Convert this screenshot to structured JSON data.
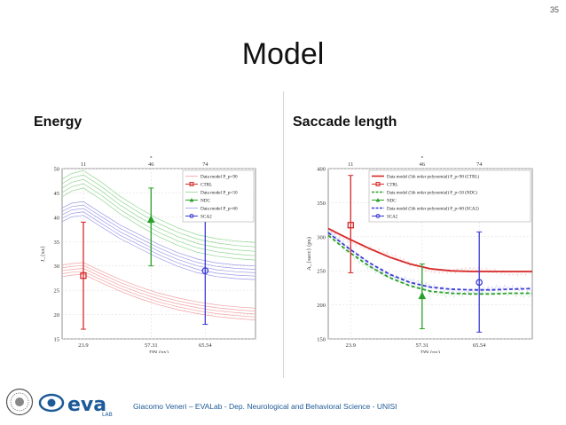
{
  "slide": {
    "page_number": "35",
    "title": "Model",
    "left_heading": "Energy",
    "right_heading": "Saccade length",
    "footer": "Giacomo  Veneri – EVALab  - Dep. Neurological  and Behavioral Science - UNISI",
    "logo_text": "eva",
    "logo_sub": "LAB"
  },
  "colors": {
    "ctrl": "#d62828",
    "ndc": "#2aa02a",
    "sca2": "#3b3bd6",
    "ctrl_light": "#f2a0a0",
    "ndc_light": "#8fd68f",
    "sca2_light": "#9c9ce8"
  },
  "chart_data": [
    {
      "type": "line",
      "title": "Energy",
      "xlabel": "DN (px)",
      "ylabel": "J_{xx}",
      "top_axis_label": "s",
      "xlim": [
        0,
        100
      ],
      "ylim": [
        15,
        50
      ],
      "yticks": [
        15,
        20,
        25,
        30,
        35,
        40,
        45,
        50
      ],
      "top_ticks": [
        {
          "pos": 11,
          "label": "11"
        },
        {
          "pos": 46,
          "label": "46"
        },
        {
          "pos": 74,
          "label": "74"
        }
      ],
      "x_ticks": [
        {
          "pos": 11,
          "label": "23.9"
        },
        {
          "pos": 46,
          "label": "57.31"
        },
        {
          "pos": 74,
          "label": "65.54"
        }
      ],
      "legend": [
        {
          "label": "Data model P_p=90",
          "color_key": "ctrl_light",
          "style": "thin"
        },
        {
          "label": "CTRL",
          "color_key": "ctrl",
          "style": "square"
        },
        {
          "label": "Data model P_p=50",
          "color_key": "ndc_light",
          "style": "thin"
        },
        {
          "label": "NDC",
          "color_key": "ndc",
          "style": "triangle"
        },
        {
          "label": "Data model P_p=60",
          "color_key": "sca2_light",
          "style": "thin"
        },
        {
          "label": "SCA2",
          "color_key": "sca2",
          "style": "circle"
        }
      ],
      "curve_bundles": [
        {
          "name": "CTRL model",
          "color_key": "ctrl_light",
          "base": [
            [
              0,
              29
            ],
            [
              5,
              29.3
            ],
            [
              11,
              29.5
            ],
            [
              20,
              27.8
            ],
            [
              30,
              26
            ],
            [
              40,
              24.5
            ],
            [
              50,
              23.2
            ],
            [
              60,
              22.2
            ],
            [
              70,
              21.4
            ],
            [
              80,
              20.8
            ],
            [
              90,
              20.4
            ],
            [
              100,
              20.1
            ]
          ],
          "offsets": [
            -1.2,
            -0.6,
            0,
            0.6,
            1.2
          ]
        },
        {
          "name": "NDC model",
          "color_key": "ndc_light",
          "base": [
            [
              0,
              46
            ],
            [
              5,
              47.2
            ],
            [
              11,
              47.8
            ],
            [
              20,
              45.5
            ],
            [
              30,
              42.5
            ],
            [
              40,
              40
            ],
            [
              50,
              37.8
            ],
            [
              60,
              36
            ],
            [
              70,
              34.6
            ],
            [
              80,
              33.8
            ],
            [
              90,
              33.3
            ],
            [
              100,
              33
            ]
          ],
          "offsets": [
            -1.8,
            -0.9,
            0,
            0.9,
            1.8
          ]
        },
        {
          "name": "SCA2 model",
          "color_key": "sca2_light",
          "base": [
            [
              0,
              40.5
            ],
            [
              5,
              41.5
            ],
            [
              11,
              41.8
            ],
            [
              20,
              39.5
            ],
            [
              30,
              37
            ],
            [
              40,
              35
            ],
            [
              50,
              33
            ],
            [
              60,
              31.3
            ],
            [
              70,
              30
            ],
            [
              80,
              29.2
            ],
            [
              90,
              28.8
            ],
            [
              100,
              28.6
            ]
          ],
          "offsets": [
            -1.4,
            -0.7,
            0,
            0.7,
            1.4
          ]
        }
      ],
      "points": [
        {
          "name": "CTRL",
          "x": 11,
          "y": 28,
          "ylo": 17,
          "yhi": 39,
          "color_key": "ctrl",
          "marker": "square"
        },
        {
          "name": "NDC",
          "x": 46,
          "y": 39.5,
          "ylo": 30,
          "yhi": 46,
          "color_key": "ndc",
          "marker": "triangle"
        },
        {
          "name": "SCA2",
          "x": 74,
          "y": 29,
          "ylo": 18,
          "yhi": 40,
          "color_key": "sca2",
          "marker": "circle"
        }
      ]
    },
    {
      "type": "line",
      "title": "Saccade length",
      "xlabel": "DN (px)",
      "ylabel": "A_{sacc} (px)",
      "top_axis_label": "s",
      "xlim": [
        0,
        100
      ],
      "ylim": [
        150,
        400
      ],
      "yticks": [
        150,
        200,
        250,
        300,
        350,
        400
      ],
      "top_ticks": [
        {
          "pos": 11,
          "label": "11"
        },
        {
          "pos": 46,
          "label": "46"
        },
        {
          "pos": 74,
          "label": "74"
        }
      ],
      "x_ticks": [
        {
          "pos": 11,
          "label": "23.9"
        },
        {
          "pos": 46,
          "label": "57.31"
        },
        {
          "pos": 74,
          "label": "65.54"
        }
      ],
      "legend": [
        {
          "label": "Data model (5th order polynomial) P_p=90 (CTRL)",
          "color_key": "ctrl",
          "style": "solid"
        },
        {
          "label": "CTRL",
          "color_key": "ctrl",
          "style": "square"
        },
        {
          "label": "Data model (5th order polynomial) P_p=50 (NDC)",
          "color_key": "ndc",
          "style": "dashed"
        },
        {
          "label": "NDC",
          "color_key": "ndc",
          "style": "triangle"
        },
        {
          "label": "Data model (5th order polynomial) P_p=60 (SCA2)",
          "color_key": "sca2",
          "style": "dashed"
        },
        {
          "label": "SCA2",
          "color_key": "sca2",
          "style": "circle"
        }
      ],
      "fit_lines": [
        {
          "name": "CTRL fit",
          "color_key": "ctrl",
          "style": "solid",
          "points": [
            [
              0,
              312
            ],
            [
              10,
              297
            ],
            [
              20,
              283
            ],
            [
              30,
              270
            ],
            [
              40,
              260
            ],
            [
              50,
              253
            ],
            [
              60,
              250
            ],
            [
              70,
              249
            ],
            [
              80,
              249
            ],
            [
              90,
              249
            ],
            [
              100,
              249
            ]
          ]
        },
        {
          "name": "NDC fit",
          "color_key": "ndc",
          "style": "dashed",
          "points": [
            [
              0,
              302
            ],
            [
              10,
              278
            ],
            [
              20,
              257
            ],
            [
              30,
              240
            ],
            [
              40,
              228
            ],
            [
              50,
              220
            ],
            [
              60,
              217
            ],
            [
              70,
              216
            ],
            [
              80,
              216
            ],
            [
              90,
              217
            ],
            [
              100,
              217
            ]
          ]
        },
        {
          "name": "SCA2 fit",
          "color_key": "sca2",
          "style": "dashed",
          "points": [
            [
              0,
              306
            ],
            [
              10,
              283
            ],
            [
              20,
              262
            ],
            [
              30,
              245
            ],
            [
              40,
              233
            ],
            [
              50,
              226
            ],
            [
              60,
              223
            ],
            [
              70,
              222
            ],
            [
              80,
              222
            ],
            [
              90,
              223
            ],
            [
              100,
              224
            ]
          ]
        }
      ],
      "points": [
        {
          "name": "CTRL",
          "x": 11,
          "y": 317,
          "ylo": 247,
          "yhi": 390,
          "color_key": "ctrl",
          "marker": "square"
        },
        {
          "name": "NDC",
          "x": 46,
          "y": 213,
          "ylo": 165,
          "yhi": 260,
          "color_key": "ndc",
          "marker": "triangle"
        },
        {
          "name": "SCA2",
          "x": 74,
          "y": 233,
          "ylo": 160,
          "yhi": 307,
          "color_key": "sca2",
          "marker": "circle"
        }
      ]
    }
  ]
}
